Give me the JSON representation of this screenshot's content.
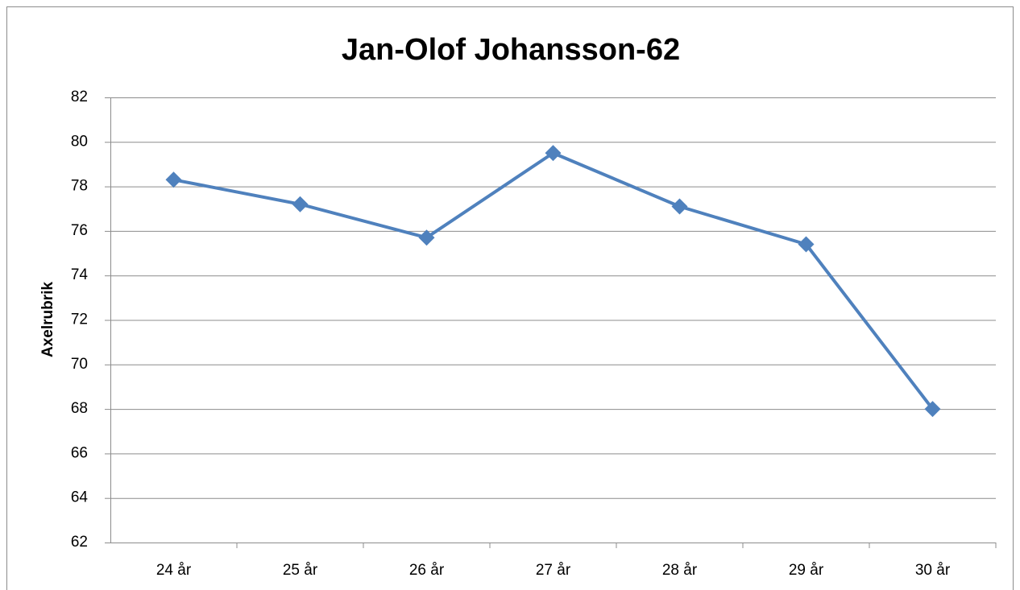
{
  "chart_data": {
    "type": "line",
    "title": "Jan-Olof Johansson-62",
    "y_label": "Axelrubrik",
    "categories": [
      "24 år",
      "25 år",
      "26 år",
      "27 år",
      "28 år",
      "29 år",
      "30 år"
    ],
    "series": [
      {
        "color": "#4f81bd",
        "values": [
          78.3,
          77.2,
          75.7,
          79.5,
          77.1,
          75.4,
          68.0
        ]
      }
    ],
    "ylim": [
      62,
      82
    ],
    "yticks": [
      62,
      64,
      66,
      68,
      70,
      72,
      74,
      76,
      78,
      80,
      82
    ],
    "grid": true
  }
}
